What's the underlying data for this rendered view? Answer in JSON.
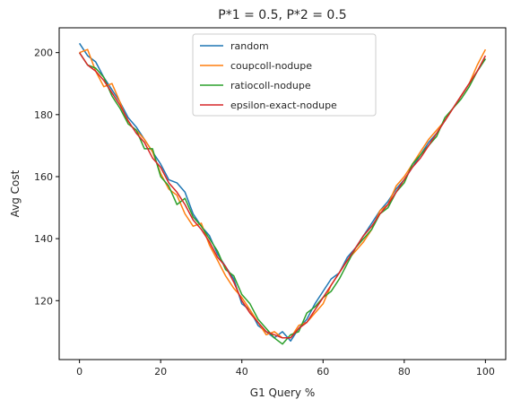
{
  "chart_data": {
    "type": "line",
    "title": "P*1 = 0.5, P*2 = 0.5",
    "xlabel": "G1 Query %",
    "ylabel": "Avg Cost",
    "xlim": [
      -5,
      105
    ],
    "ylim": [
      101,
      208
    ],
    "xticks": [
      0,
      20,
      40,
      60,
      80,
      100
    ],
    "yticks": [
      120,
      140,
      160,
      180,
      200
    ],
    "grid": false,
    "legend_position": "top-center",
    "x": [
      0,
      2,
      4,
      6,
      8,
      10,
      12,
      14,
      16,
      18,
      20,
      22,
      24,
      26,
      28,
      30,
      32,
      34,
      36,
      38,
      40,
      42,
      44,
      46,
      48,
      50,
      52,
      54,
      56,
      58,
      60,
      62,
      64,
      66,
      68,
      70,
      72,
      74,
      76,
      78,
      80,
      82,
      84,
      86,
      88,
      90,
      92,
      94,
      96,
      98,
      100
    ],
    "series": [
      {
        "name": "random",
        "color": "#1f77b4",
        "values": [
          203,
          199,
          197,
          192,
          188,
          184,
          179,
          176,
          172,
          168,
          164,
          159,
          158,
          155,
          148,
          144,
          141,
          135,
          131,
          127,
          119,
          117,
          112,
          110,
          108,
          110,
          107,
          111,
          114,
          119,
          123,
          127,
          129,
          134,
          137,
          141,
          145,
          149,
          152,
          156,
          159,
          163,
          167,
          171,
          174,
          178,
          182,
          186,
          190,
          194,
          198
        ]
      },
      {
        "name": "coupcoll-nodupe",
        "color": "#ff7f0e",
        "values": [
          200,
          201,
          194,
          189,
          190,
          184,
          177,
          175,
          172,
          168,
          161,
          156,
          154,
          148,
          144,
          145,
          138,
          133,
          128,
          124,
          121,
          117,
          113,
          109,
          110,
          108,
          108,
          112,
          113,
          116,
          119,
          125,
          129,
          133,
          136,
          139,
          143,
          149,
          151,
          157,
          160,
          164,
          168,
          172,
          175,
          178,
          182,
          186,
          190,
          196,
          201
        ]
      },
      {
        "name": "ratiocoll-nodupe",
        "color": "#2ca02c",
        "values": [
          200,
          196,
          195,
          192,
          186,
          182,
          177,
          175,
          169,
          169,
          160,
          157,
          151,
          153,
          147,
          144,
          140,
          136,
          130,
          128,
          122,
          119,
          114,
          111,
          108,
          106,
          109,
          110,
          116,
          118,
          121,
          123,
          127,
          132,
          137,
          140,
          143,
          148,
          150,
          155,
          158,
          164,
          167,
          170,
          173,
          179,
          182,
          185,
          189,
          194,
          198
        ]
      },
      {
        "name": "epsilon-exact-nodupe",
        "color": "#d62728",
        "values": [
          200,
          196,
          194,
          191,
          187,
          183,
          178,
          174,
          171,
          166,
          163,
          158,
          155,
          151,
          146,
          143,
          139,
          134,
          131,
          126,
          120,
          116,
          113,
          110,
          109,
          108,
          108,
          111,
          113,
          117,
          121,
          125,
          129,
          133,
          137,
          141,
          144,
          148,
          151,
          155,
          159,
          163,
          166,
          170,
          174,
          178,
          182,
          186,
          190,
          194,
          199
        ]
      }
    ]
  }
}
